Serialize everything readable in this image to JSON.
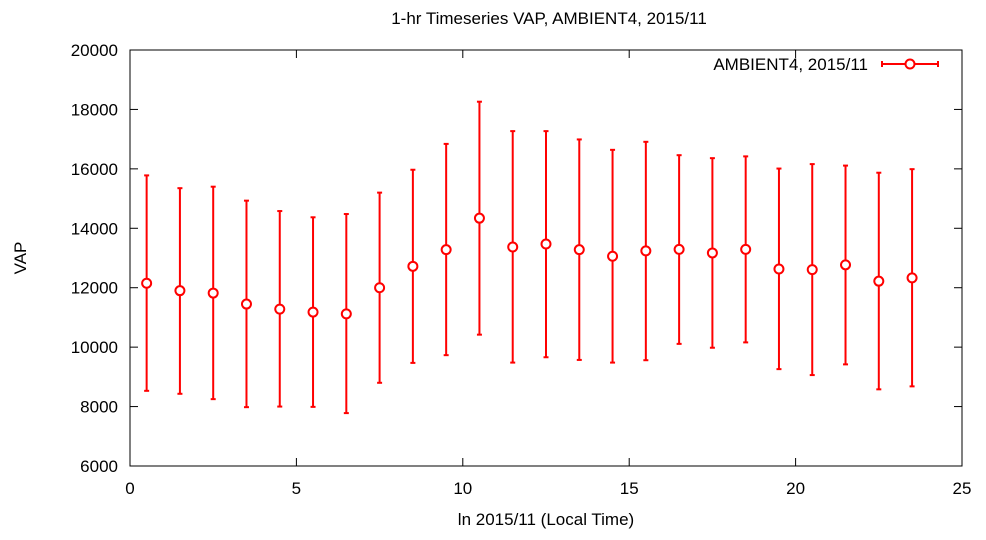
{
  "chart_data": {
    "type": "scatter",
    "title": "1-hr Timeseries VAP, AMBIENT4, 2015/11",
    "xlabel": "ln 2015/11 (Local Time)",
    "ylabel": "VAP",
    "xlim": [
      0,
      25
    ],
    "ylim": [
      6000,
      20000
    ],
    "xticks": [
      0,
      5,
      10,
      15,
      20,
      25
    ],
    "yticks": [
      6000,
      8000,
      10000,
      12000,
      14000,
      16000,
      18000,
      20000
    ],
    "grid": false,
    "legend_position": "top-right",
    "series": [
      {
        "name": "AMBIENT4, 2015/11",
        "color": "#ff0000",
        "marker": "open-circle",
        "error_bars": true,
        "points": [
          {
            "x": 0.5,
            "y": 12150,
            "ylow": 8530,
            "yhigh": 15780
          },
          {
            "x": 1.5,
            "y": 11900,
            "ylow": 8430,
            "yhigh": 15350
          },
          {
            "x": 2.5,
            "y": 11820,
            "ylow": 8250,
            "yhigh": 15400
          },
          {
            "x": 3.5,
            "y": 11450,
            "ylow": 7980,
            "yhigh": 14930
          },
          {
            "x": 4.5,
            "y": 11280,
            "ylow": 8000,
            "yhigh": 14580
          },
          {
            "x": 5.5,
            "y": 11180,
            "ylow": 7990,
            "yhigh": 14370
          },
          {
            "x": 6.5,
            "y": 11120,
            "ylow": 7780,
            "yhigh": 14480
          },
          {
            "x": 7.5,
            "y": 12000,
            "ylow": 8800,
            "yhigh": 15200
          },
          {
            "x": 8.5,
            "y": 12720,
            "ylow": 9470,
            "yhigh": 15970
          },
          {
            "x": 9.5,
            "y": 13280,
            "ylow": 9730,
            "yhigh": 16840
          },
          {
            "x": 10.5,
            "y": 14340,
            "ylow": 10420,
            "yhigh": 18260
          },
          {
            "x": 11.5,
            "y": 13370,
            "ylow": 9480,
            "yhigh": 17270
          },
          {
            "x": 12.5,
            "y": 13470,
            "ylow": 9660,
            "yhigh": 17270
          },
          {
            "x": 13.5,
            "y": 13280,
            "ylow": 9570,
            "yhigh": 16990
          },
          {
            "x": 14.5,
            "y": 13060,
            "ylow": 9480,
            "yhigh": 16640
          },
          {
            "x": 15.5,
            "y": 13240,
            "ylow": 9560,
            "yhigh": 16910
          },
          {
            "x": 16.5,
            "y": 13290,
            "ylow": 10110,
            "yhigh": 16460
          },
          {
            "x": 17.5,
            "y": 13170,
            "ylow": 9980,
            "yhigh": 16360
          },
          {
            "x": 18.5,
            "y": 13290,
            "ylow": 10160,
            "yhigh": 16420
          },
          {
            "x": 19.5,
            "y": 12630,
            "ylow": 9260,
            "yhigh": 16010
          },
          {
            "x": 20.5,
            "y": 12610,
            "ylow": 9060,
            "yhigh": 16160
          },
          {
            "x": 21.5,
            "y": 12770,
            "ylow": 9420,
            "yhigh": 16110
          },
          {
            "x": 22.5,
            "y": 12220,
            "ylow": 8580,
            "yhigh": 15870
          },
          {
            "x": 23.5,
            "y": 12330,
            "ylow": 8680,
            "yhigh": 15990
          }
        ]
      }
    ]
  }
}
